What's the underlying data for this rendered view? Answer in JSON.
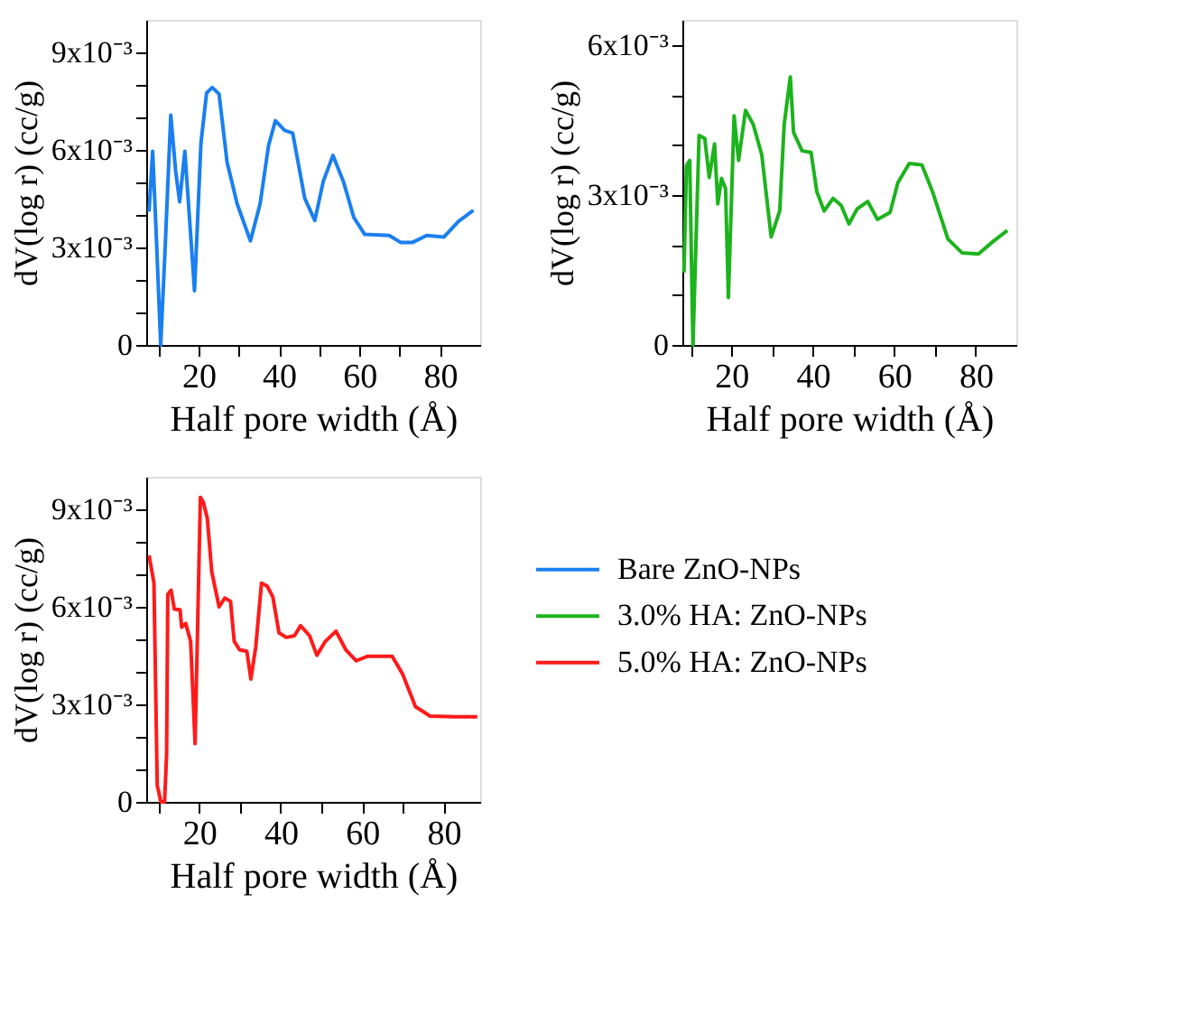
{
  "chart_data": [
    {
      "type": "line",
      "xlabel": "Half pore width (Å)",
      "ylabel": "dV(log r) (cc/g)",
      "xlim": [
        7,
        90
      ],
      "ylim": [
        0,
        0.01
      ],
      "xticks": [
        {
          "value": 10,
          "label": null
        },
        20,
        {
          "value": 30,
          "label": null
        },
        40,
        {
          "value": 50,
          "label": null
        },
        60,
        {
          "value": 70,
          "label": null
        },
        80
      ],
      "yticks": [
        0,
        {
          "value": 0.001,
          "label": null
        },
        {
          "value": 0.002,
          "label": null
        },
        {
          "value": 0.003,
          "label": "3x10⁻³"
        },
        {
          "value": 0.004,
          "label": null
        },
        {
          "value": 0.005,
          "label": null
        },
        {
          "value": 0.006,
          "label": "6x10⁻³"
        },
        {
          "value": 0.007,
          "label": null
        },
        {
          "value": 0.008,
          "label": null
        },
        {
          "value": 0.009,
          "label": "9x10⁻³"
        }
      ],
      "grid": false,
      "legend": "bottom right",
      "series": [
        {
          "name": "Bare ZnO-NPs",
          "color": "#1a7ff0",
          "x": [
            7.7,
            8.6,
            9.4,
            10.6,
            11.7,
            13.1,
            14.3,
            15.3,
            16.6,
            17.7,
            19,
            20.6,
            22,
            23.4,
            25.1,
            27.1,
            29.6,
            32.9,
            35.3,
            37.4,
            39.1,
            41.4,
            43.4,
            46.4,
            48.9,
            51,
            53.4,
            56,
            58.6,
            61.3,
            67.4,
            70.3,
            73.1,
            76.7,
            81,
            84.6,
            88.3
          ],
          "values": [
            0.0041,
            0.00596,
            0.00366,
            0,
            0.00298,
            0.00707,
            0.00537,
            0.0044,
            0.00596,
            0.004,
            0.00167,
            0.0062,
            0.00775,
            0.00792,
            0.00772,
            0.00562,
            0.00434,
            0.0032,
            0.00434,
            0.00613,
            0.0069,
            0.0066,
            0.00652,
            0.00451,
            0.00383,
            0.00503,
            0.00583,
            0.00503,
            0.00392,
            0.0034,
            0.00337,
            0.00315,
            0.00315,
            0.00337,
            0.00332,
            0.0038,
            0.00414
          ]
        }
      ]
    },
    {
      "type": "line",
      "xlabel": "Half pore width (Å)",
      "ylabel": "dV(log r) (cc/g)",
      "xlim": [
        8,
        90
      ],
      "ylim": [
        0,
        0.0065
      ],
      "xticks": [
        {
          "value": 10,
          "label": null
        },
        20,
        {
          "value": 30,
          "label": null
        },
        40,
        {
          "value": 50,
          "label": null
        },
        60,
        {
          "value": 70,
          "label": null
        },
        80
      ],
      "yticks": [
        0,
        {
          "value": 0.001,
          "label": null
        },
        {
          "value": 0.002,
          "label": null
        },
        {
          "value": 0.003,
          "label": "3x10⁻³"
        },
        {
          "value": 0.004,
          "label": null
        },
        {
          "value": 0.005,
          "label": null
        },
        {
          "value": 0.006,
          "label": "6x10⁻³"
        }
      ],
      "grid": false,
      "legend": "bottom",
      "series": [
        {
          "name": "3.0% HA: ZnO-NPs",
          "color": "#1db31d",
          "x": [
            8.4,
            9.0,
            9.8,
            10.6,
            12.1,
            13.5,
            14.6,
            15.9,
            16.7,
            17.6,
            18.6,
            19.3,
            20.7,
            21.8,
            23.5,
            25.4,
            27.5,
            29.8,
            31.9,
            33.0,
            34.5,
            35.3,
            37.4,
            39.6,
            41,
            42.8,
            45,
            47,
            48.9,
            50.9,
            53.5,
            55.9,
            59,
            60.9,
            63.7,
            66.8,
            69.4,
            73.2,
            76.7,
            80.7,
            84.3,
            87.8
          ],
          "values": [
            0.00145,
            0.00358,
            0.00369,
            0,
            0.00419,
            0.00413,
            0.00335,
            0.00402,
            0.00282,
            0.00333,
            0.00313,
            0.00095,
            0.00458,
            0.00369,
            0.00469,
            0.00441,
            0.0038,
            0.00216,
            0.00268,
            0.00441,
            0.00536,
            0.00425,
            0.00388,
            0.00385,
            0.00307,
            0.00268,
            0.00293,
            0.00279,
            0.00242,
            0.00272,
            0.00287,
            0.00251,
            0.00265,
            0.00324,
            0.00363,
            0.0036,
            0.00307,
            0.00212,
            0.00184,
            0.00182,
            0.00207,
            0.00229
          ]
        }
      ]
    },
    {
      "type": "line",
      "xlabel": "Half pore width (Å)",
      "ylabel": "dV(log r) (cc/g)",
      "xlim": [
        7,
        89
      ],
      "ylim": [
        0,
        0.01
      ],
      "xticks": [
        {
          "value": 10,
          "label": null
        },
        20,
        {
          "value": 30,
          "label": null
        },
        40,
        {
          "value": 50,
          "label": null
        },
        60,
        {
          "value": 70,
          "label": null
        },
        80
      ],
      "yticks": [
        0,
        {
          "value": 0.001,
          "label": null
        },
        {
          "value": 0.002,
          "label": null
        },
        {
          "value": 0.003,
          "label": "3x10⁻³"
        },
        {
          "value": 0.004,
          "label": null
        },
        {
          "value": 0.005,
          "label": null
        },
        {
          "value": 0.006,
          "label": "6x10⁻³"
        },
        {
          "value": 0.007,
          "label": null
        },
        {
          "value": 0.008,
          "label": null
        },
        {
          "value": 0.009,
          "label": "9x10⁻³"
        }
      ],
      "grid": false,
      "legend": "right",
      "series": [
        {
          "name": "5.0% HA: ZnO-NPs",
          "color": "#ff1a1a",
          "x": [
            7.7,
            8.9,
            9.7,
            10.6,
            11.5,
            12.0,
            12.3,
            13.1,
            13.9,
            15.3,
            15.7,
            16.7,
            17.9,
            19,
            20.3,
            21,
            22,
            23.1,
            24.9,
            26.3,
            27.7,
            28.6,
            29.9,
            31.7,
            32.7,
            33.9,
            35.3,
            36.7,
            38.1,
            39.6,
            41.4,
            43.4,
            44.9,
            47.1,
            48.9,
            51,
            53.6,
            56,
            58.6,
            61.4,
            67.4,
            70,
            73.1,
            76.7,
            83.1,
            88.3
          ],
          "values": [
            0.00758,
            0.00673,
            0.00051,
            0,
            0,
            0.00145,
            0.00639,
            0.00651,
            0.00593,
            0.00591,
            0.00537,
            0.00549,
            0.00494,
            0.00179,
            0.00937,
            0.00923,
            0.00872,
            0.00707,
            0.006,
            0.00627,
            0.00617,
            0.00494,
            0.00468,
            0.00463,
            0.00378,
            0.00477,
            0.00673,
            0.00664,
            0.0063,
            0.0052,
            0.00506,
            0.00511,
            0.00542,
            0.00511,
            0.00451,
            0.00494,
            0.00525,
            0.00468,
            0.00434,
            0.00448,
            0.00448,
            0.00392,
            0.00293,
            0.00264,
            0.00262,
            0.00262
          ]
        }
      ]
    }
  ]
}
